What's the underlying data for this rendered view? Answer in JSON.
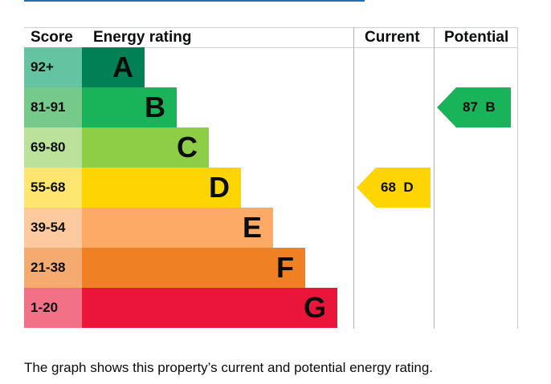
{
  "headers": {
    "score": "Score",
    "energy_rating": "Energy rating",
    "current": "Current",
    "potential": "Potential"
  },
  "bands": [
    {
      "score": "92+",
      "letter": "A",
      "bar_color": "#008054",
      "score_bg": "#64c3a0"
    },
    {
      "score": "81-91",
      "letter": "B",
      "bar_color": "#19b459",
      "score_bg": "#74c98b"
    },
    {
      "score": "69-80",
      "letter": "C",
      "bar_color": "#8dce46",
      "score_bg": "#bbe29a"
    },
    {
      "score": "55-68",
      "letter": "D",
      "bar_color": "#ffd500",
      "score_bg": "#ffe670"
    },
    {
      "score": "39-54",
      "letter": "E",
      "bar_color": "#fcaa65",
      "score_bg": "#fdcaa0"
    },
    {
      "score": "21-38",
      "letter": "F",
      "bar_color": "#ef8023",
      "score_bg": "#f5ab70"
    },
    {
      "score": "1-20",
      "letter": "G",
      "bar_color": "#e9153b",
      "score_bg": "#f27187"
    }
  ],
  "current": {
    "value": "68",
    "letter": "D",
    "color": "#ffd500"
  },
  "potential": {
    "value": "87",
    "letter": "B",
    "color": "#19b459"
  },
  "caption": "The graph shows this property’s current and potential energy rating."
}
